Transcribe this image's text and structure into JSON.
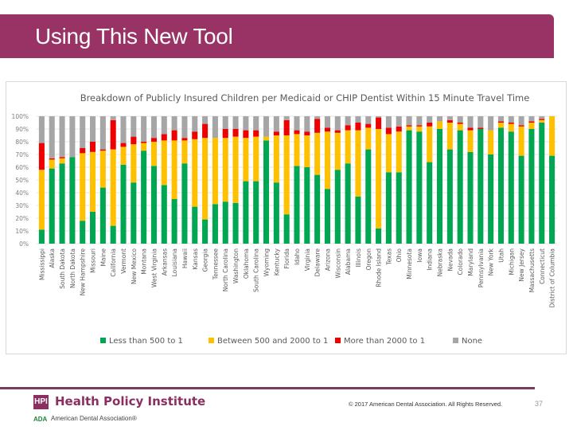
{
  "slide": {
    "title": "Using This New Tool",
    "footer": {
      "hpi_badge": "HPI",
      "hpi_name": "Health Policy Institute",
      "ada_badge": "ADA",
      "ada_name": "American Dental Association®",
      "copyright": "© 2017 American Dental Association. All Rights Reserved.",
      "page_number": "37"
    },
    "colors": {
      "brand": "#993366",
      "green": "#00a651",
      "yellow": "#ffc000",
      "red": "#ee0000",
      "gray": "#a6a6a6"
    }
  },
  "chart_data": {
    "type": "bar",
    "stacked": true,
    "title": "Breakdown of Publicly Insured Children per Medicaid or CHIP Dentist Within 15 Minute Travel Time",
    "xlabel": "",
    "ylabel": "",
    "ylim": [
      0,
      100
    ],
    "yticks": [
      "0%",
      "10%",
      "20%",
      "30%",
      "40%",
      "50%",
      "60%",
      "70%",
      "80%",
      "90%",
      "100%"
    ],
    "grid": true,
    "legend_position": "bottom",
    "categories": [
      "Mississippi",
      "Alaska",
      "South Dakota",
      "North Dakota",
      "New Hampshire",
      "Missouri",
      "Maine",
      "California",
      "Vermont",
      "New Mexico",
      "Montana",
      "West Virginia",
      "Arkansas",
      "Louisiana",
      "Hawaii",
      "Kansas",
      "Georgia",
      "Tennessee",
      "North Carolina",
      "Washington",
      "Oklahoma",
      "South Carolina",
      "Wyoming",
      "Kentucky",
      "Florida",
      "Idaho",
      "Virginia",
      "Delaware",
      "Arizona",
      "Wisconsin",
      "Alabama",
      "Illinois",
      "Oregon",
      "Rhode Island",
      "Texas",
      "Ohio",
      "Minnesota",
      "Iowa",
      "Indiana",
      "Nebraska",
      "Nevada",
      "Colorado",
      "Maryland",
      "Pennsylvania",
      "New York",
      "Utah",
      "Michigan",
      "New Jersey",
      "Massachusetts",
      "Connecticut",
      "District of Columbia"
    ],
    "series": [
      {
        "name": "Less than 500 to 1",
        "color": "#00a651",
        "values": [
          11,
          59,
          63,
          68,
          18,
          25,
          44,
          14,
          62,
          48,
          73,
          61,
          46,
          35,
          63,
          29,
          19,
          31,
          33,
          32,
          49,
          49,
          81,
          48,
          23,
          61,
          60,
          54,
          43,
          58,
          63,
          37,
          74,
          12,
          56,
          56,
          89,
          88,
          64,
          90,
          74,
          89,
          72,
          90,
          70,
          91,
          88,
          69,
          90,
          95,
          69
        ]
      },
      {
        "name": "Between 500 and 2000 to 1",
        "color": "#ffc000",
        "values": [
          47,
          7,
          4,
          0,
          53,
          47,
          29,
          60,
          14,
          30,
          6,
          19,
          35,
          46,
          18,
          53,
          64,
          52,
          50,
          52,
          34,
          35,
          3,
          37,
          62,
          25,
          25,
          33,
          45,
          29,
          26,
          52,
          17,
          78,
          30,
          32,
          3,
          4,
          28,
          6,
          21,
          5,
          17,
          0,
          19,
          4,
          6,
          23,
          5,
          2,
          31
        ]
      },
      {
        "name": "More than 2000 to 1",
        "color": "#ee0000",
        "values": [
          21,
          1,
          1,
          0,
          4,
          8,
          1,
          23,
          3,
          6,
          1,
          3,
          5,
          8,
          2,
          6,
          11,
          0,
          7,
          6,
          6,
          5,
          0,
          3,
          12,
          3,
          3,
          11,
          3,
          2,
          4,
          6,
          3,
          9,
          5,
          4,
          1,
          1,
          3,
          0,
          2,
          1,
          2,
          1,
          0,
          1,
          1,
          1,
          1,
          1,
          0
        ]
      },
      {
        "name": "None",
        "color": "#a6a6a6",
        "values": [
          21,
          33,
          32,
          32,
          25,
          20,
          26,
          3,
          21,
          16,
          20,
          17,
          14,
          11,
          17,
          12,
          6,
          17,
          10,
          10,
          11,
          11,
          16,
          12,
          3,
          11,
          12,
          2,
          9,
          11,
          7,
          5,
          6,
          1,
          9,
          8,
          7,
          7,
          5,
          4,
          3,
          5,
          9,
          9,
          11,
          4,
          5,
          7,
          4,
          2,
          0
        ]
      }
    ],
    "legend": [
      "Less than 500 to 1",
      "Between 500 and 2000 to 1",
      "More than 2000 to 1",
      "None"
    ]
  }
}
